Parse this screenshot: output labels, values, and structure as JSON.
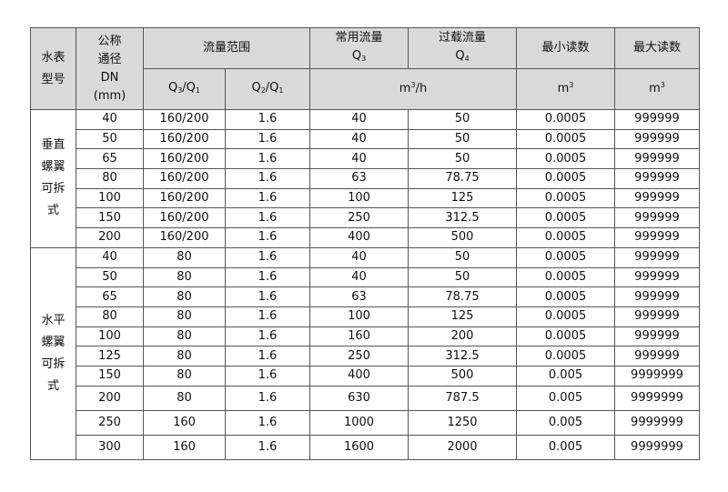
{
  "header": {
    "model": "水表型号",
    "dn": "公称通径DN(mm)",
    "dn_lines": [
      "公称",
      "通径",
      "DN",
      "(mm)"
    ],
    "model_lines": [
      "水表",
      "型号"
    ],
    "flow_range": "流量范围",
    "q3q1": "Q3/Q1",
    "q2q1": "Q2/Q1",
    "q3_label": "常用流量",
    "q3": "Q3",
    "q4_label": "过载流量",
    "q4": "Q4",
    "flow_unit": "m3/h",
    "min_reading": "最小读数",
    "max_reading": "最大读数",
    "min_unit": "m3",
    "max_unit": "m3"
  },
  "groups": [
    {
      "name": "垂直螺翼可拆式",
      "name_lines": [
        "垂直",
        "螺翼",
        "可拆",
        "式"
      ],
      "rows": [
        [
          "40",
          "160/200",
          "1.6",
          "40",
          "50",
          "0.0005",
          "999999"
        ],
        [
          "50",
          "160/200",
          "1.6",
          "40",
          "50",
          "0.0005",
          "999999"
        ],
        [
          "65",
          "160/200",
          "1.6",
          "40",
          "50",
          "0.0005",
          "999999"
        ],
        [
          "80",
          "160/200",
          "1.6",
          "63",
          "78.75",
          "0.0005",
          "999999"
        ],
        [
          "100",
          "160/200",
          "1.6",
          "100",
          "125",
          "0.0005",
          "999999"
        ],
        [
          "150",
          "160/200",
          "1.6",
          "250",
          "312.5",
          "0.0005",
          "999999"
        ],
        [
          "200",
          "160/200",
          "1.6",
          "400",
          "500",
          "0.0005",
          "999999"
        ]
      ]
    },
    {
      "name": "水平螺翼可拆式",
      "name_lines": [
        "水平",
        "螺翼",
        "可拆",
        "式"
      ],
      "rows": [
        [
          "40",
          "80",
          "1.6",
          "40",
          "50",
          "0.0005",
          "999999"
        ],
        [
          "50",
          "80",
          "1.6",
          "40",
          "50",
          "0.0005",
          "999999"
        ],
        [
          "65",
          "80",
          "1.6",
          "63",
          "78.75",
          "0.0005",
          "999999"
        ],
        [
          "80",
          "80",
          "1.6",
          "100",
          "125",
          "0.0005",
          "999999"
        ],
        [
          "100",
          "80",
          "1.6",
          "160",
          "200",
          "0.0005",
          "999999"
        ],
        [
          "125",
          "80",
          "1.6",
          "250",
          "312.5",
          "0.0005",
          "999999"
        ],
        [
          "150",
          "80",
          "1.6",
          "400",
          "500",
          "0.005",
          "9999999"
        ],
        [
          "200",
          "80",
          "1.6",
          "630",
          "787.5",
          "0.005",
          "9999999"
        ],
        [
          "250",
          "160",
          "1.6",
          "1000",
          "1250",
          "0.005",
          "9999999"
        ],
        [
          "300",
          "160",
          "1.6",
          "1600",
          "2000",
          "0.005",
          "9999999"
        ]
      ]
    }
  ]
}
